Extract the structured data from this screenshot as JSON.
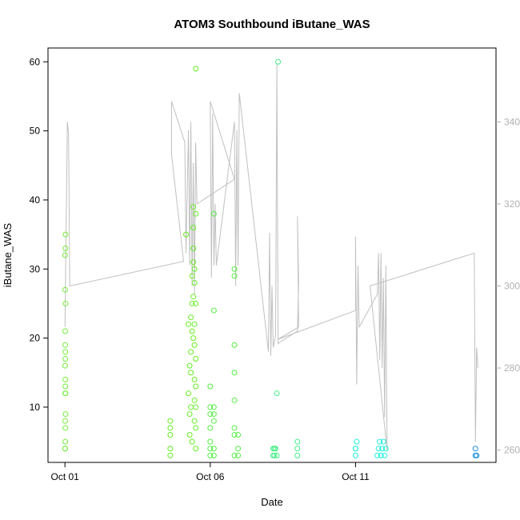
{
  "chart_data": {
    "type": "scatter",
    "title": "ATOM3 Southbound iButane_WAS",
    "xlabel": "Date",
    "ylabel": "iButane_WAS",
    "xlim": [
      "2016-09-30T10:00",
      "2016-10-15T20:00"
    ],
    "ylim": [
      2,
      62
    ],
    "y_ticks": [
      10,
      20,
      30,
      40,
      50,
      60
    ],
    "x_ticks": [
      {
        "label": "Oct 01",
        "date": "2016-10-01"
      },
      {
        "label": "Oct 06",
        "date": "2016-10-06"
      },
      {
        "label": "Oct 11",
        "date": "2016-10-11"
      }
    ],
    "y2lim": [
      257,
      358
    ],
    "y2_ticks": [
      260,
      280,
      300,
      320,
      340
    ],
    "grid": false,
    "colors": {
      "axis": "#000000",
      "secondary_axis": "#b0b0b0",
      "line": "#c0c0c0"
    },
    "series": [
      {
        "color": "#76ee3c",
        "points": [
          {
            "x": "2016-10-01T00:10",
            "y": 4
          },
          {
            "x": "2016-10-01T00:15",
            "y": 5
          },
          {
            "x": "2016-10-01T00:12",
            "y": 12
          },
          {
            "x": "2016-10-01T00:18",
            "y": 14
          },
          {
            "x": "2016-10-01T00:20",
            "y": 17
          },
          {
            "x": "2016-10-01T00:08",
            "y": 16
          },
          {
            "x": "2016-10-01T00:14",
            "y": 19
          },
          {
            "x": "2016-10-01T00:10",
            "y": 21
          },
          {
            "x": "2016-10-01T00:10",
            "y": 27
          },
          {
            "x": "2016-10-01T00:05",
            "y": 32
          },
          {
            "x": "2016-10-01T00:25",
            "y": 33
          },
          {
            "x": "2016-10-01T00:30",
            "y": 35
          },
          {
            "x": "2016-10-01T00:30",
            "y": 25
          },
          {
            "x": "2016-10-01T00:30",
            "y": 9
          },
          {
            "x": "2016-10-01T00:22",
            "y": 7
          },
          {
            "x": "2016-10-01T00:12",
            "y": 8
          },
          {
            "x": "2016-10-01T00:16",
            "y": 13
          },
          {
            "x": "2016-10-01T00:20",
            "y": 18
          },
          {
            "x": "2016-10-01T00:06",
            "y": 4
          },
          {
            "x": "2016-10-01T00:26",
            "y": 12
          }
        ]
      },
      {
        "color": "#66ee22",
        "points": [
          {
            "x": "2016-10-04T15:00",
            "y": 3
          },
          {
            "x": "2016-10-04T15:00",
            "y": 4
          },
          {
            "x": "2016-10-04T15:00",
            "y": 6
          },
          {
            "x": "2016-10-04T15:00",
            "y": 7
          },
          {
            "x": "2016-10-04T15:00",
            "y": 8
          },
          {
            "x": "2016-10-05T04:00",
            "y": 35
          },
          {
            "x": "2016-10-05T06:00",
            "y": 22
          },
          {
            "x": "2016-10-05T06:00",
            "y": 12
          },
          {
            "x": "2016-10-05T07:00",
            "y": 6
          },
          {
            "x": "2016-10-05T07:00",
            "y": 9
          },
          {
            "x": "2016-10-05T08:00",
            "y": 15
          },
          {
            "x": "2016-10-05T08:00",
            "y": 18
          },
          {
            "x": "2016-10-05T09:00",
            "y": 21
          },
          {
            "x": "2016-10-05T09:00",
            "y": 25
          },
          {
            "x": "2016-10-05T09:00",
            "y": 29
          },
          {
            "x": "2016-10-05T10:00",
            "y": 31
          },
          {
            "x": "2016-10-05T10:00",
            "y": 33
          },
          {
            "x": "2016-10-05T10:00",
            "y": 36
          },
          {
            "x": "2016-10-05T10:00",
            "y": 39
          },
          {
            "x": "2016-10-05T11:00",
            "y": 28
          },
          {
            "x": "2016-10-05T11:00",
            "y": 30
          },
          {
            "x": "2016-10-05T11:00",
            "y": 22
          },
          {
            "x": "2016-10-05T11:00",
            "y": 19
          },
          {
            "x": "2016-10-05T11:00",
            "y": 14
          },
          {
            "x": "2016-10-05T11:00",
            "y": 11
          },
          {
            "x": "2016-10-05T12:00",
            "y": 7
          },
          {
            "x": "2016-10-05T12:00",
            "y": 4
          },
          {
            "x": "2016-10-05T12:00",
            "y": 59
          },
          {
            "x": "2016-10-05T12:00",
            "y": 38
          },
          {
            "x": "2016-10-05T12:00",
            "y": 25
          },
          {
            "x": "2016-10-05T12:00",
            "y": 17
          },
          {
            "x": "2016-10-05T12:00",
            "y": 13
          },
          {
            "x": "2016-10-05T12:00",
            "y": 10
          },
          {
            "x": "2016-10-05T09:00",
            "y": 5
          },
          {
            "x": "2016-10-05T08:00",
            "y": 10
          },
          {
            "x": "2016-10-05T10:00",
            "y": 26
          },
          {
            "x": "2016-10-05T10:00",
            "y": 20
          },
          {
            "x": "2016-10-05T07:00",
            "y": 16
          },
          {
            "x": "2016-10-05T11:00",
            "y": 8
          },
          {
            "x": "2016-10-05T08:00",
            "y": 23
          }
        ]
      },
      {
        "color": "#55ee44",
        "points": [
          {
            "x": "2016-10-06T00:00",
            "y": 3
          },
          {
            "x": "2016-10-06T00:00",
            "y": 4
          },
          {
            "x": "2016-10-06T00:00",
            "y": 5
          },
          {
            "x": "2016-10-06T00:00",
            "y": 7
          },
          {
            "x": "2016-10-06T00:00",
            "y": 9
          },
          {
            "x": "2016-10-06T00:00",
            "y": 10
          },
          {
            "x": "2016-10-06T00:00",
            "y": 13
          },
          {
            "x": "2016-10-06T03:00",
            "y": 3
          },
          {
            "x": "2016-10-06T03:00",
            "y": 4
          },
          {
            "x": "2016-10-06T03:00",
            "y": 8
          },
          {
            "x": "2016-10-06T03:00",
            "y": 9
          },
          {
            "x": "2016-10-06T03:00",
            "y": 10
          },
          {
            "x": "2016-10-06T03:00",
            "y": 24
          },
          {
            "x": "2016-10-06T03:00",
            "y": 38
          },
          {
            "x": "2016-10-06T20:00",
            "y": 3
          },
          {
            "x": "2016-10-06T20:00",
            "y": 6
          },
          {
            "x": "2016-10-06T20:00",
            "y": 7
          },
          {
            "x": "2016-10-06T20:00",
            "y": 11
          },
          {
            "x": "2016-10-06T20:00",
            "y": 15
          },
          {
            "x": "2016-10-06T20:00",
            "y": 19
          },
          {
            "x": "2016-10-06T20:00",
            "y": 29
          },
          {
            "x": "2016-10-06T20:00",
            "y": 30
          },
          {
            "x": "2016-10-06T23:00",
            "y": 3
          },
          {
            "x": "2016-10-06T23:00",
            "y": 4
          },
          {
            "x": "2016-10-06T23:00",
            "y": 6
          }
        ]
      },
      {
        "color": "#44ee88",
        "points": [
          {
            "x": "2016-10-08T04:00",
            "y": 3
          },
          {
            "x": "2016-10-08T04:00",
            "y": 4
          },
          {
            "x": "2016-10-08T05:00",
            "y": 3
          },
          {
            "x": "2016-10-08T06:00",
            "y": 4
          },
          {
            "x": "2016-10-08T07:00",
            "y": 3
          },
          {
            "x": "2016-10-08T07:00",
            "y": 12
          },
          {
            "x": "2016-10-08T08:00",
            "y": 60
          },
          {
            "x": "2016-10-08T05:00",
            "y": 4
          },
          {
            "x": "2016-10-09T00:00",
            "y": 3
          },
          {
            "x": "2016-10-09T00:00",
            "y": 4
          },
          {
            "x": "2016-10-09T00:00",
            "y": 5
          }
        ]
      },
      {
        "color": "#22eedd",
        "points": [
          {
            "x": "2016-10-11T00:00",
            "y": 3
          },
          {
            "x": "2016-10-11T00:00",
            "y": 4
          },
          {
            "x": "2016-10-11T01:00",
            "y": 5
          },
          {
            "x": "2016-10-11T00:00",
            "y": 4
          },
          {
            "x": "2016-10-11T18:00",
            "y": 3
          },
          {
            "x": "2016-10-11T19:00",
            "y": 4
          },
          {
            "x": "2016-10-11T20:00",
            "y": 5
          },
          {
            "x": "2016-10-11T21:00",
            "y": 3
          },
          {
            "x": "2016-10-11T22:00",
            "y": 4
          },
          {
            "x": "2016-10-11T23:00",
            "y": 5
          },
          {
            "x": "2016-10-12T00:00",
            "y": 3
          },
          {
            "x": "2016-10-12T01:00",
            "y": 4
          }
        ]
      },
      {
        "color": "#1a8fdd",
        "points": [
          {
            "x": "2016-10-15T03:00",
            "y": 3
          },
          {
            "x": "2016-10-15T03:00",
            "y": 4
          },
          {
            "x": "2016-10-15T04:00",
            "y": 3
          }
        ]
      }
    ],
    "line_series": {
      "color": "#c0c0c0",
      "points": [
        {
          "x": "2016-10-01T00:00",
          "y2": 290
        },
        {
          "x": "2016-10-01T02:00",
          "y2": 340
        },
        {
          "x": "2016-10-01T03:00",
          "y2": 337
        },
        {
          "x": "2016-10-01T04:00",
          "y2": 300
        },
        {
          "x": "2016-10-05T02:00",
          "y2": 306
        },
        {
          "x": "2016-10-04T16:00",
          "y2": 332
        },
        {
          "x": "2016-10-04T16:00",
          "y2": 345
        },
        {
          "x": "2016-10-05T03:00",
          "y2": 335
        },
        {
          "x": "2016-10-05T04:00",
          "y2": 308
        },
        {
          "x": "2016-10-05T06:00",
          "y2": 338
        },
        {
          "x": "2016-10-05T07:00",
          "y2": 305
        },
        {
          "x": "2016-10-05T08:00",
          "y2": 340
        },
        {
          "x": "2016-10-05T09:00",
          "y2": 300
        },
        {
          "x": "2016-10-05T10:00",
          "y2": 330
        },
        {
          "x": "2016-10-05T11:00",
          "y2": 298
        },
        {
          "x": "2016-10-05T12:00",
          "y2": 335
        },
        {
          "x": "2016-10-05T13:00",
          "y2": 320
        },
        {
          "x": "2016-10-06T20:00",
          "y2": 326
        },
        {
          "x": "2016-10-06T00:00",
          "y2": 345
        },
        {
          "x": "2016-10-06T01:00",
          "y2": 302
        },
        {
          "x": "2016-10-06T02:00",
          "y2": 342
        },
        {
          "x": "2016-10-06T03:00",
          "y2": 305
        },
        {
          "x": "2016-10-06T04:00",
          "y2": 320
        },
        {
          "x": "2016-10-06T05:00",
          "y2": 305
        },
        {
          "x": "2016-10-06T20:00",
          "y2": 340
        },
        {
          "x": "2016-10-06T21:00",
          "y2": 300
        },
        {
          "x": "2016-10-06T22:00",
          "y2": 338
        },
        {
          "x": "2016-10-06T23:00",
          "y2": 305
        },
        {
          "x": "2016-10-07T00:00",
          "y2": 347
        },
        {
          "x": "2016-10-08T00:00",
          "y2": 284
        },
        {
          "x": "2016-10-08T01:00",
          "y2": 313
        },
        {
          "x": "2016-10-08T02:00",
          "y2": 283
        },
        {
          "x": "2016-10-08T03:00",
          "y2": 300
        },
        {
          "x": "2016-10-08T04:00",
          "y2": 285
        },
        {
          "x": "2016-10-08T06:00",
          "y2": 288
        },
        {
          "x": "2016-10-08T07:00",
          "y2": 354
        },
        {
          "x": "2016-10-08T08:00",
          "y2": 286
        },
        {
          "x": "2016-10-09T00:00",
          "y2": 289
        },
        {
          "x": "2016-10-09T01:00",
          "y2": 301
        },
        {
          "x": "2016-10-09T00:00",
          "y2": 317
        },
        {
          "x": "2016-10-09T01:00",
          "y2": 290
        },
        {
          "x": "2016-10-08T08:00",
          "y2": 287
        },
        {
          "x": "2016-10-11T00:00",
          "y2": 294
        },
        {
          "x": "2016-10-11T00:00",
          "y2": 312
        },
        {
          "x": "2016-10-11T01:00",
          "y2": 276
        },
        {
          "x": "2016-10-11T02:00",
          "y2": 305
        },
        {
          "x": "2016-10-11T03:00",
          "y2": 290
        },
        {
          "x": "2016-10-11T18:00",
          "y2": 298
        },
        {
          "x": "2016-10-11T19:00",
          "y2": 308
        },
        {
          "x": "2016-10-11T20:00",
          "y2": 282
        },
        {
          "x": "2016-10-11T21:00",
          "y2": 308
        },
        {
          "x": "2016-10-11T22:00",
          "y2": 280
        },
        {
          "x": "2016-10-11T23:00",
          "y2": 302
        },
        {
          "x": "2016-10-12T00:00",
          "y2": 268
        },
        {
          "x": "2016-10-12T01:00",
          "y2": 305
        },
        {
          "x": "2016-10-12T02:00",
          "y2": 260
        },
        {
          "x": "2016-10-11T12:00",
          "y2": 300
        },
        {
          "x": "2016-10-15T02:00",
          "y2": 308
        },
        {
          "x": "2016-10-15T03:00",
          "y2": 262
        },
        {
          "x": "2016-10-15T04:00",
          "y2": 285
        },
        {
          "x": "2016-10-15T05:00",
          "y2": 280
        }
      ]
    }
  }
}
